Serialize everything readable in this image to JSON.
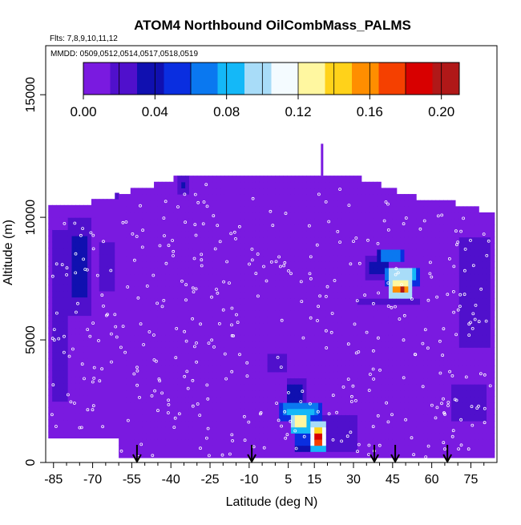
{
  "chart_data": {
    "type": "heatmap",
    "title": "ATOM4 Northbound OilCombMass_PALMS",
    "flights_note": "Flts: 7,8,9,10,11,12",
    "dates_note": "MMDD: 0509,0512,0514,0517,0518,0519",
    "xlabel": "Latitude (deg N)",
    "ylabel": "Altitude (m)",
    "xlim": [
      -88,
      85
    ],
    "ylim": [
      0,
      17000
    ],
    "x_ticks": [
      -85,
      -70,
      -55,
      -40,
      -25,
      -10,
      5,
      15,
      30,
      45,
      60,
      75
    ],
    "y_ticks": [
      0,
      5000,
      10000,
      15000
    ],
    "colorbar": {
      "min": 0.0,
      "max": 0.21,
      "tick_values": [
        0.0,
        0.04,
        0.08,
        0.12,
        0.16,
        0.2
      ],
      "tick_labels": [
        "0.00",
        "0.04",
        "0.08",
        "0.12",
        "0.16",
        "0.20"
      ],
      "colors": [
        "#7a1ae0",
        "#5010cc",
        "#1010b0",
        "#0a2ee0",
        "#0a78f0",
        "#14b8f8",
        "#a8dcf8",
        "#f4fbff",
        "#fff7a0",
        "#ffd21a",
        "#ff8e00",
        "#f54000",
        "#d80000",
        "#b01818"
      ]
    },
    "background_value": 0.005,
    "enhanced_regions": [
      {
        "lat": [
          -87,
          -78
        ],
        "alt": [
          1500,
          10500
        ],
        "value": 0.02
      },
      {
        "lat": [
          -80,
          -70
        ],
        "alt": [
          6000,
          10000
        ],
        "value": 0.03
      },
      {
        "lat": [
          -70,
          -60
        ],
        "alt": [
          6500,
          9500
        ],
        "value": 0.015
      },
      {
        "lat": [
          -37,
          -33
        ],
        "alt": [
          11000,
          11700
        ],
        "value": 0.03
      },
      {
        "lat": [
          -64,
          -60
        ],
        "alt": [
          10800,
          11400
        ],
        "value": 0.03
      },
      {
        "lat": [
          -5,
          6
        ],
        "alt": [
          3500,
          4800
        ],
        "value": 0.015
      },
      {
        "lat": [
          4,
          12
        ],
        "alt": [
          2300,
          3400
        ],
        "value": 0.04
      },
      {
        "lat": [
          1,
          18
        ],
        "alt": [
          1800,
          2400
        ],
        "value": 0.08
      },
      {
        "lat": [
          6,
          13
        ],
        "alt": [
          1300,
          2000
        ],
        "value": 0.13
      },
      {
        "lat": [
          13,
          20
        ],
        "alt": [
          500,
          1700
        ],
        "value": 0.12
      },
      {
        "lat": [
          15,
          18
        ],
        "alt": [
          700,
          1400
        ],
        "value": 0.19
      },
      {
        "lat": [
          7,
          14
        ],
        "alt": [
          500,
          1300
        ],
        "value": 0.05
      },
      {
        "lat": [
          18,
          32
        ],
        "alt": [
          500,
          2000
        ],
        "value": 0.025
      },
      {
        "lat": [
          35,
          44
        ],
        "alt": [
          7500,
          8400
        ],
        "value": 0.04
      },
      {
        "lat": [
          39,
          50
        ],
        "alt": [
          8200,
          8800
        ],
        "value": 0.06
      },
      {
        "lat": [
          42,
          55
        ],
        "alt": [
          7300,
          8000
        ],
        "value": 0.1
      },
      {
        "lat": [
          44,
          52
        ],
        "alt": [
          6800,
          7400
        ],
        "value": 0.16
      },
      {
        "lat": [
          47,
          50
        ],
        "alt": [
          6900,
          7300
        ],
        "value": 0.2
      },
      {
        "lat": [
          28,
          58
        ],
        "alt": [
          6300,
          6800
        ],
        "value": 0.02
      },
      {
        "lat": [
          70,
          83
        ],
        "alt": [
          4500,
          9500
        ],
        "value": 0.025
      },
      {
        "lat": [
          66,
          82
        ],
        "alt": [
          1500,
          3500
        ],
        "value": 0.02
      },
      {
        "lat": [
          -82,
          -55
        ],
        "alt": [
          300,
          1200
        ],
        "value": 0.01
      }
    ],
    "flight_arrows_lat": [
      -53,
      -9,
      38,
      46,
      66
    ]
  }
}
